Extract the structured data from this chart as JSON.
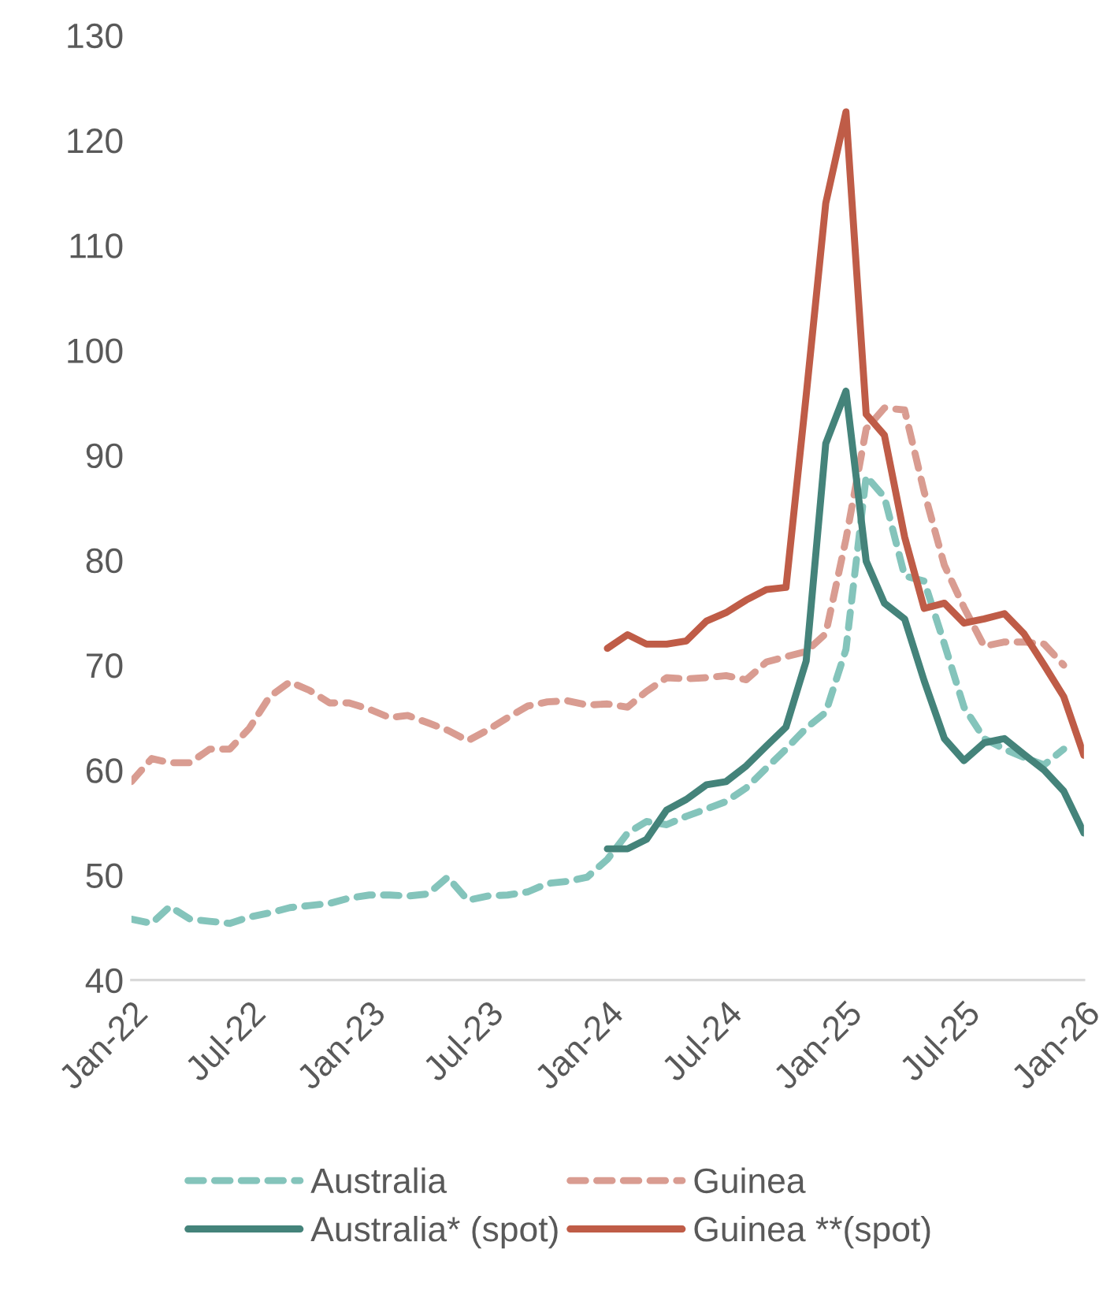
{
  "chart_data": {
    "type": "line",
    "xlim": [
      "2022-01",
      "2026-01"
    ],
    "xticks": [
      {
        "value": "2022-01",
        "label": "Jan-22"
      },
      {
        "value": "2022-07",
        "label": "Jul-22"
      },
      {
        "value": "2023-01",
        "label": "Jan-23"
      },
      {
        "value": "2023-07",
        "label": "Jul-23"
      },
      {
        "value": "2024-01",
        "label": "Jan-24"
      },
      {
        "value": "2024-07",
        "label": "Jul-24"
      },
      {
        "value": "2025-01",
        "label": "Jan-25"
      },
      {
        "value": "2025-07",
        "label": "Jul-25"
      },
      {
        "value": "2026-01",
        "label": "Jan-26"
      }
    ],
    "ylim": [
      40,
      130
    ],
    "yticks": [
      40,
      50,
      60,
      70,
      80,
      90,
      100,
      110,
      120,
      130
    ],
    "grid": false,
    "legend": "bottom",
    "x": [
      "2022-01",
      "2022-02",
      "2022-03",
      "2022-04",
      "2022-05",
      "2022-06",
      "2022-07",
      "2022-08",
      "2022-09",
      "2022-10",
      "2022-11",
      "2022-12",
      "2023-01",
      "2023-02",
      "2023-03",
      "2023-04",
      "2023-05",
      "2023-06",
      "2023-07",
      "2023-08",
      "2023-09",
      "2023-10",
      "2023-11",
      "2023-12",
      "2024-01",
      "2024-02",
      "2024-03",
      "2024-04",
      "2024-05",
      "2024-06",
      "2024-07",
      "2024-08",
      "2024-09",
      "2024-10",
      "2024-11",
      "2024-12",
      "2025-01",
      "2025-02",
      "2025-03",
      "2025-04",
      "2025-05",
      "2025-06",
      "2025-07",
      "2025-08",
      "2025-09",
      "2025-10",
      "2025-11",
      "2025-12"
    ],
    "series": [
      {
        "name": "Australia",
        "color": "#84c4bb",
        "line_style": "dashed",
        "values": [
          45.8,
          45.4,
          47.0,
          45.8,
          45.6,
          45.4,
          46.0,
          46.4,
          46.9,
          47.1,
          47.3,
          47.8,
          48.1,
          48.1,
          48.0,
          48.2,
          49.8,
          47.6,
          48.0,
          48.1,
          48.4,
          49.2,
          49.4,
          49.8,
          51.5,
          54.0,
          55.1,
          54.8,
          55.6,
          56.3,
          57.0,
          58.3,
          60.2,
          62.0,
          64.0,
          65.5,
          71.5,
          88.0,
          86.0,
          78.5,
          78.0,
          72.0,
          66.0,
          63.0,
          62.0,
          61.2,
          60.5,
          62.0
        ]
      },
      {
        "name": "Guinea",
        "color": "#d99c91",
        "line_style": "dashed",
        "values": [
          58.9,
          61.1,
          60.7,
          60.7,
          62.0,
          62.0,
          64.0,
          67.0,
          68.4,
          67.6,
          66.4,
          66.4,
          65.8,
          65.0,
          65.2,
          64.5,
          63.8,
          62.8,
          63.8,
          65.0,
          66.1,
          66.5,
          66.6,
          66.2,
          66.3,
          66.0,
          67.5,
          68.8,
          68.7,
          68.8,
          69.0,
          68.6,
          70.3,
          70.8,
          71.3,
          73.0,
          82.0,
          92.5,
          94.5,
          94.3,
          86.5,
          79.5,
          75.5,
          71.8,
          72.2,
          72.2,
          72.0,
          70.0
        ]
      },
      {
        "name": "Australia* (spot)",
        "color": "#44837a",
        "line_style": "solid",
        "x": [
          "2024-01",
          "2024-02",
          "2024-03",
          "2024-04",
          "2024-05",
          "2024-06",
          "2024-07",
          "2024-08",
          "2024-09",
          "2024-10",
          "2024-11",
          "2024-12",
          "2025-01",
          "2025-02",
          "2025-03",
          "2025-04",
          "2025-05",
          "2025-06",
          "2025-07",
          "2025-08",
          "2025-09",
          "2025-10",
          "2025-11",
          "2025-12",
          "2026-01"
        ],
        "values": [
          52.5,
          52.5,
          53.4,
          56.2,
          57.2,
          58.6,
          58.9,
          60.4,
          62.3,
          64.1,
          70.4,
          91.1,
          96.1,
          79.9,
          75.9,
          74.4,
          68.5,
          63.0,
          60.9,
          62.6,
          63.0,
          61.5,
          60.0,
          58.0,
          54.0
        ]
      },
      {
        "name": "Guinea **(spot)",
        "color": "#bf5c47",
        "line_style": "solid",
        "x": [
          "2024-01",
          "2024-02",
          "2024-03",
          "2024-04",
          "2024-05",
          "2024-06",
          "2024-07",
          "2024-08",
          "2024-09",
          "2024-10",
          "2024-11",
          "2024-12",
          "2025-01",
          "2025-02",
          "2025-03",
          "2025-04",
          "2025-05",
          "2025-06",
          "2025-07",
          "2025-08",
          "2025-09",
          "2025-10",
          "2025-11",
          "2025-12",
          "2026-01"
        ],
        "values": [
          71.6,
          72.9,
          72.0,
          72.0,
          72.3,
          74.2,
          75.0,
          76.2,
          77.2,
          77.4,
          95.7,
          114.0,
          122.7,
          93.9,
          91.9,
          82.2,
          75.4,
          75.9,
          74.0,
          74.4,
          74.9,
          73.0,
          70.0,
          67.0,
          61.4
        ]
      }
    ]
  }
}
